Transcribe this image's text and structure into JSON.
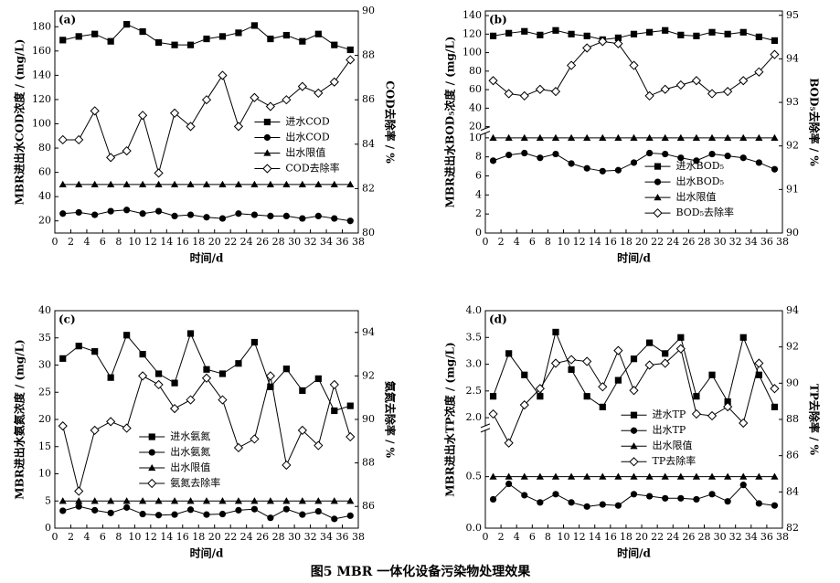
{
  "caption": "图5   MBR 一体化设备污染物处理效果",
  "chart_data": [
    {
      "type": "line",
      "label": "(a)",
      "xlabel": "时间/d",
      "ylabel": "MBR进出水COD浓度 / (mg/L)",
      "y2label": "COD去除率 / %",
      "x": [
        1,
        3,
        5,
        7,
        9,
        11,
        13,
        15,
        17,
        19,
        21,
        23,
        25,
        27,
        29,
        31,
        33,
        35,
        37
      ],
      "xlim": [
        0,
        38
      ],
      "xticks": [
        0,
        2,
        4,
        6,
        8,
        10,
        12,
        14,
        16,
        18,
        20,
        22,
        24,
        26,
        28,
        30,
        32,
        34,
        36,
        38
      ],
      "ylim": [
        10,
        193
      ],
      "yticks": [
        20,
        40,
        60,
        80,
        100,
        120,
        140,
        160,
        180
      ],
      "y2lim": [
        80,
        90
      ],
      "y2ticks": [
        80,
        82,
        84,
        86,
        88,
        90
      ],
      "legend": "center right",
      "series": [
        {
          "name": "进水COD",
          "marker": "square",
          "color": "#000000",
          "values": [
            169,
            172,
            174,
            168,
            182,
            176,
            167,
            165,
            165,
            170,
            172,
            175,
            181,
            170,
            173,
            168,
            174,
            165,
            161
          ]
        },
        {
          "name": "出水COD",
          "marker": "circle",
          "color": "#000000",
          "values": [
            26,
            27,
            25,
            28,
            29,
            26,
            28,
            24,
            25,
            23,
            22,
            26,
            25,
            24,
            24,
            22,
            24,
            22,
            20
          ]
        },
        {
          "name": "出水限值",
          "marker": "triangle",
          "color": "#000000",
          "values": [
            50,
            50,
            50,
            50,
            50,
            50,
            50,
            50,
            50,
            50,
            50,
            50,
            50,
            50,
            50,
            50,
            50,
            50,
            50
          ]
        },
        {
          "name": "COD去除率",
          "marker": "diamond",
          "color": "#000000",
          "axis": "y2",
          "values": [
            84.2,
            84.2,
            85.5,
            83.4,
            83.7,
            85.3,
            82.7,
            85.4,
            84.8,
            86.0,
            87.1,
            84.8,
            86.1,
            85.7,
            86.0,
            86.6,
            86.3,
            86.8,
            87.8
          ]
        }
      ]
    },
    {
      "type": "line",
      "label": "(b)",
      "xlabel": "时间/d",
      "ylabel": "MBR进出水BOD₅浓度 / (mg/L)",
      "y2label": "BOD₅去除率 / %",
      "x": [
        1,
        3,
        5,
        7,
        9,
        11,
        13,
        15,
        17,
        19,
        21,
        23,
        25,
        27,
        29,
        31,
        33,
        35,
        37
      ],
      "xlim": [
        0,
        38
      ],
      "xticks": [
        0,
        2,
        4,
        6,
        8,
        10,
        12,
        14,
        16,
        18,
        20,
        22,
        24,
        26,
        28,
        30,
        32,
        34,
        36,
        38
      ],
      "ysegments": [
        {
          "ylim": [
            0,
            10.5
          ],
          "yticks": [
            0,
            2,
            4,
            6,
            8,
            10
          ]
        },
        {
          "ylim": [
            18,
            145
          ],
          "yticks": [
            20,
            40,
            60,
            80,
            100,
            120,
            140
          ]
        }
      ],
      "y2lim": [
        90,
        95.1
      ],
      "y2ticks": [
        90,
        91,
        92,
        93,
        94,
        95
      ],
      "legend": "lower right",
      "series": [
        {
          "name": "进水BOD₅",
          "marker": "square",
          "color": "#000000",
          "values": [
            118,
            121,
            123,
            119,
            124,
            120,
            118,
            114,
            116,
            120,
            122,
            124,
            119,
            118,
            122,
            120,
            122,
            117,
            113
          ]
        },
        {
          "name": "出水BOD₅",
          "marker": "circle",
          "color": "#000000",
          "values": [
            7.6,
            8.2,
            8.4,
            7.9,
            8.3,
            7.3,
            6.8,
            6.5,
            6.6,
            7.4,
            8.4,
            8.3,
            7.9,
            7.6,
            8.3,
            8.1,
            7.9,
            7.4,
            6.7
          ]
        },
        {
          "name": "出水限值",
          "marker": "triangle",
          "color": "#000000",
          "values": [
            10,
            10,
            10,
            10,
            10,
            10,
            10,
            10,
            10,
            10,
            10,
            10,
            10,
            10,
            10,
            10,
            10,
            10,
            10
          ]
        },
        {
          "name": "BOD₅去除率",
          "marker": "diamond",
          "color": "#000000",
          "axis": "y2",
          "values": [
            93.5,
            93.2,
            93.15,
            93.3,
            93.25,
            93.85,
            94.25,
            94.4,
            94.35,
            93.85,
            93.15,
            93.3,
            93.4,
            93.5,
            93.2,
            93.25,
            93.5,
            93.7,
            94.1
          ]
        }
      ]
    },
    {
      "type": "line",
      "label": "(c)",
      "xlabel": "时间/d",
      "ylabel": "MBR进出水氨氮浓度 / (mg/L)",
      "y2label": "氨氮去除率 / %",
      "x": [
        1,
        3,
        5,
        7,
        9,
        11,
        13,
        15,
        17,
        19,
        21,
        23,
        25,
        27,
        29,
        31,
        33,
        35,
        37
      ],
      "xlim": [
        0,
        38
      ],
      "xticks": [
        0,
        2,
        4,
        6,
        8,
        10,
        12,
        14,
        16,
        18,
        20,
        22,
        24,
        26,
        28,
        30,
        32,
        34,
        36,
        38
      ],
      "ylim": [
        0,
        40
      ],
      "yticks": [
        0,
        5,
        10,
        15,
        20,
        25,
        30,
        35,
        40
      ],
      "y2lim": [
        85,
        95
      ],
      "y2ticks": [
        86,
        88,
        90,
        92,
        94
      ],
      "legend": "lower left",
      "series": [
        {
          "name": "进水氨氮",
          "marker": "square",
          "color": "#000000",
          "values": [
            31.2,
            33.5,
            32.5,
            27.7,
            35.5,
            32.0,
            28.4,
            26.7,
            35.8,
            29.2,
            28.4,
            30.3,
            34.2,
            26.0,
            29.3,
            25.3,
            27.5,
            21.6,
            22.5
          ]
        },
        {
          "name": "出水氨氮",
          "marker": "circle",
          "color": "#000000",
          "values": [
            3.2,
            4.0,
            3.3,
            2.8,
            3.8,
            2.6,
            2.4,
            2.5,
            3.4,
            2.5,
            2.6,
            3.3,
            3.5,
            1.9,
            3.5,
            2.5,
            3.1,
            1.7,
            2.3
          ]
        },
        {
          "name": "出水限值",
          "marker": "triangle",
          "color": "#000000",
          "values": [
            5,
            5,
            5,
            5,
            5,
            5,
            5,
            5,
            5,
            5,
            5,
            5,
            5,
            5,
            5,
            5,
            5,
            5,
            5
          ]
        },
        {
          "name": "氨氮去除率",
          "marker": "diamond",
          "color": "#000000",
          "axis": "y2",
          "values": [
            89.7,
            86.7,
            89.5,
            89.9,
            89.6,
            92.0,
            91.6,
            90.5,
            90.9,
            91.9,
            90.9,
            88.7,
            89.1,
            92.0,
            87.9,
            89.5,
            88.8,
            91.6,
            89.2
          ]
        }
      ]
    },
    {
      "type": "line",
      "label": "(d)",
      "xlabel": "时间/d",
      "ylabel": "MBR进出水TP浓度 / (mg/L)",
      "y2label": "TP去除率 / %",
      "x": [
        1,
        3,
        5,
        7,
        9,
        11,
        13,
        15,
        17,
        19,
        21,
        23,
        25,
        27,
        29,
        31,
        33,
        35,
        37
      ],
      "xlim": [
        0,
        38
      ],
      "xticks": [
        0,
        2,
        4,
        6,
        8,
        10,
        12,
        14,
        16,
        18,
        20,
        22,
        24,
        26,
        28,
        30,
        32,
        34,
        36,
        38
      ],
      "ysegments": [
        {
          "ylim": [
            0,
            0.95
          ],
          "yticks": [
            {
              "value": 0,
              "label": "0.0"
            },
            0.5
          ]
        },
        {
          "ylim": [
            1.85,
            4.0
          ],
          "yticks": [
            {
              "value": 2,
              "label": "2.0"
            },
            2.5,
            {
              "value": 3,
              "label": "3.0"
            },
            3.5,
            {
              "value": 4,
              "label": "4.0"
            }
          ]
        }
      ],
      "y2lim": [
        82,
        94
      ],
      "y2ticks": [
        82,
        84,
        86,
        88,
        90,
        92,
        94
      ],
      "legend": "lower center",
      "series": [
        {
          "name": "进水TP",
          "marker": "square",
          "color": "#000000",
          "values": [
            2.4,
            3.2,
            2.8,
            2.4,
            3.6,
            2.9,
            2.4,
            2.2,
            2.7,
            3.1,
            3.4,
            3.2,
            3.5,
            2.4,
            2.8,
            2.3,
            3.5,
            2.8,
            2.2
          ]
        },
        {
          "name": "出水TP",
          "marker": "circle",
          "color": "#000000",
          "values": [
            0.28,
            0.43,
            0.32,
            0.25,
            0.33,
            0.25,
            0.21,
            0.23,
            0.22,
            0.33,
            0.31,
            0.29,
            0.29,
            0.28,
            0.33,
            0.26,
            0.42,
            0.24,
            0.22
          ]
        },
        {
          "name": "出水限值",
          "marker": "triangle",
          "color": "#000000",
          "values": [
            0.5,
            0.5,
            0.5,
            0.5,
            0.5,
            0.5,
            0.5,
            0.5,
            0.5,
            0.5,
            0.5,
            0.5,
            0.5,
            0.5,
            0.5,
            0.5,
            0.5,
            0.5,
            0.5
          ]
        },
        {
          "name": "TP去除率",
          "marker": "diamond",
          "color": "#000000",
          "axis": "y2",
          "values": [
            88.3,
            86.7,
            88.8,
            89.7,
            91.1,
            91.3,
            91.2,
            89.8,
            91.8,
            89.6,
            91.0,
            91.1,
            91.9,
            88.3,
            88.2,
            88.7,
            87.8,
            91.1,
            89.7
          ]
        }
      ]
    }
  ]
}
